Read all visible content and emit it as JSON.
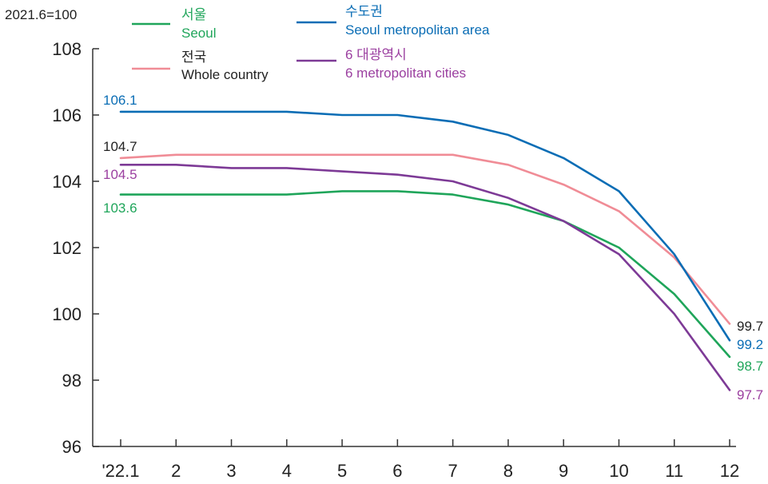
{
  "chart_data": {
    "type": "line",
    "unit_label": "2021.6=100",
    "categories": [
      "'22.1",
      "2",
      "3",
      "4",
      "5",
      "6",
      "7",
      "8",
      "9",
      "10",
      "11",
      "12"
    ],
    "yticks": [
      "96",
      "98",
      "100",
      "102",
      "104",
      "106",
      "108"
    ],
    "ylim": [
      96,
      108
    ],
    "grid": false,
    "legend_position": "top",
    "series": [
      {
        "key": "seoul",
        "name_ko": "서울",
        "name_en": "Seoul",
        "color": "#1fa55a",
        "label_color": "#1fa55a",
        "values": [
          103.6,
          103.6,
          103.6,
          103.6,
          103.7,
          103.7,
          103.6,
          103.3,
          102.8,
          102.0,
          100.6,
          98.7
        ],
        "start_label": "103.6",
        "end_label": "98.7"
      },
      {
        "key": "capital",
        "name_ko": "수도권",
        "name_en": "Seoul metropolitan area",
        "color": "#0a6db5",
        "label_color": "#0a6db5",
        "values": [
          106.1,
          106.1,
          106.1,
          106.1,
          106.0,
          106.0,
          105.8,
          105.4,
          104.7,
          103.7,
          101.8,
          99.2
        ],
        "start_label": "106.1",
        "end_label": "99.2"
      },
      {
        "key": "whole",
        "name_ko": "전국",
        "name_en": "Whole country",
        "color": "#f08c96",
        "label_color": "#222222",
        "values": [
          104.7,
          104.8,
          104.8,
          104.8,
          104.8,
          104.8,
          104.8,
          104.5,
          103.9,
          103.1,
          101.7,
          99.7
        ],
        "start_label": "104.7",
        "end_label": "99.7"
      },
      {
        "key": "metro6",
        "name_ko": "6 대광역시",
        "name_en": "6 metropolitan cities",
        "color": "#7d3a96",
        "label_color": "#9b3fa0",
        "values": [
          104.5,
          104.5,
          104.4,
          104.4,
          104.3,
          104.2,
          104.0,
          103.5,
          102.8,
          101.8,
          100.0,
          97.7
        ],
        "start_label": "104.5",
        "end_label": "97.7"
      }
    ]
  }
}
